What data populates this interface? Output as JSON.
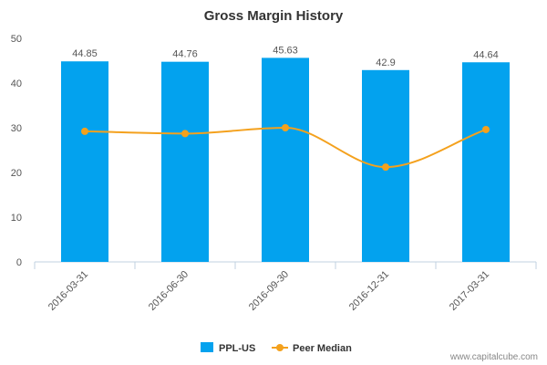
{
  "chart_data": {
    "type": "bar",
    "title": "Gross Margin History",
    "categories": [
      "2016-03-31",
      "2016-06-30",
      "2016-09-30",
      "2016-12-31",
      "2017-03-31"
    ],
    "series": [
      {
        "name": "PPL-US",
        "type": "bar",
        "values": [
          44.85,
          44.76,
          45.63,
          42.9,
          44.64
        ],
        "data_labels": [
          "44.85",
          "44.76",
          "45.63",
          "42.9",
          "44.64"
        ],
        "color": "#03A2EE"
      },
      {
        "name": "Peer Median",
        "type": "line",
        "values": [
          29.2,
          28.7,
          30.0,
          21.2,
          29.6
        ],
        "color": "#F4A11D"
      }
    ],
    "ylim": [
      0,
      50
    ],
    "yticks": [
      0,
      10,
      20,
      30,
      40,
      50
    ],
    "xlabel": "",
    "ylabel": "",
    "grid": false,
    "legend": "bottom-center"
  },
  "credit": "www.capitalcube.com"
}
